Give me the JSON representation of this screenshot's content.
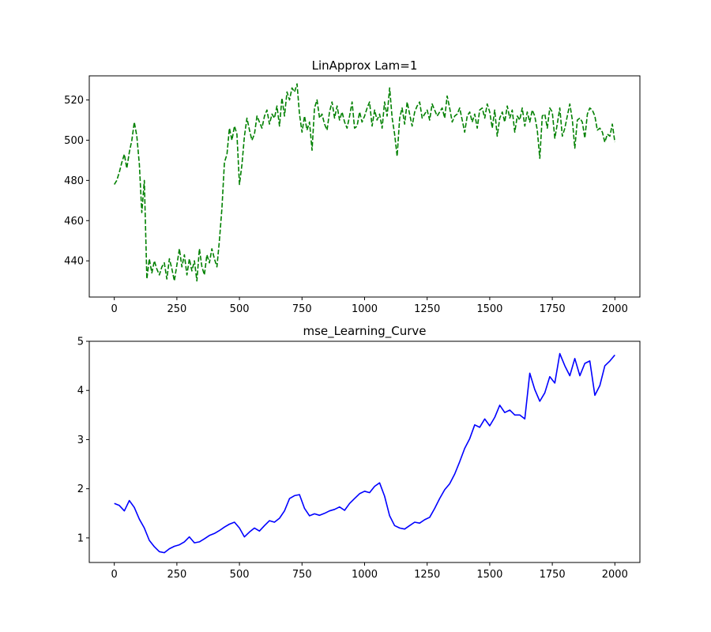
{
  "chart_data": [
    {
      "type": "line",
      "title": "LinApprox Lam=1",
      "xlabel": "",
      "ylabel": "",
      "xlim": [
        -100,
        2100
      ],
      "ylim": [
        422,
        532
      ],
      "xticks": [
        0,
        250,
        500,
        750,
        1000,
        1250,
        1500,
        1750,
        2000
      ],
      "yticks": [
        440,
        460,
        480,
        500,
        520
      ],
      "grid": false,
      "series": [
        {
          "color": "#008000",
          "style": "dashed",
          "x": [
            0,
            10,
            20,
            30,
            40,
            50,
            60,
            70,
            80,
            90,
            100,
            110,
            120,
            130,
            140,
            150,
            160,
            170,
            180,
            190,
            200,
            210,
            220,
            230,
            240,
            250,
            260,
            270,
            280,
            290,
            300,
            310,
            320,
            330,
            340,
            350,
            360,
            370,
            380,
            390,
            400,
            410,
            420,
            430,
            440,
            450,
            460,
            470,
            480,
            490,
            500,
            510,
            520,
            530,
            540,
            550,
            560,
            570,
            580,
            590,
            600,
            610,
            620,
            630,
            640,
            650,
            660,
            670,
            680,
            690,
            700,
            710,
            720,
            730,
            740,
            750,
            760,
            770,
            780,
            790,
            800,
            810,
            820,
            830,
            840,
            850,
            860,
            870,
            880,
            890,
            900,
            910,
            920,
            930,
            940,
            950,
            960,
            970,
            980,
            990,
            1000,
            1010,
            1020,
            1030,
            1040,
            1050,
            1060,
            1070,
            1080,
            1090,
            1100,
            1110,
            1120,
            1130,
            1140,
            1150,
            1160,
            1170,
            1180,
            1190,
            1200,
            1210,
            1220,
            1230,
            1240,
            1250,
            1260,
            1270,
            1280,
            1290,
            1300,
            1310,
            1320,
            1330,
            1340,
            1350,
            1360,
            1370,
            1380,
            1390,
            1400,
            1410,
            1420,
            1430,
            1440,
            1450,
            1460,
            1470,
            1480,
            1490,
            1500,
            1510,
            1520,
            1530,
            1540,
            1550,
            1560,
            1570,
            1580,
            1590,
            1600,
            1610,
            1620,
            1630,
            1640,
            1650,
            1660,
            1670,
            1680,
            1690,
            1700,
            1710,
            1720,
            1730,
            1740,
            1750,
            1760,
            1770,
            1780,
            1790,
            1800,
            1810,
            1820,
            1830,
            1840,
            1850,
            1860,
            1870,
            1880,
            1890,
            1900,
            1910,
            1920,
            1930,
            1940,
            1950,
            1960,
            1970,
            1980,
            1990,
            2000
          ],
          "y": [
            478,
            480,
            484,
            489,
            493,
            486,
            494,
            500,
            509,
            502,
            488,
            464,
            480,
            431,
            441,
            434,
            440,
            436,
            433,
            437,
            439,
            431,
            441,
            436,
            430,
            438,
            446,
            437,
            443,
            433,
            441,
            435,
            440,
            430,
            446,
            437,
            433,
            443,
            439,
            446,
            441,
            437,
            450,
            466,
            489,
            493,
            506,
            500,
            507,
            503,
            478,
            488,
            502,
            511,
            505,
            500,
            503,
            512,
            509,
            506,
            512,
            515,
            508,
            513,
            511,
            517,
            507,
            521,
            512,
            524,
            520,
            526,
            524,
            528,
            513,
            504,
            512,
            505,
            509,
            495,
            516,
            520,
            511,
            513,
            508,
            505,
            514,
            519,
            511,
            517,
            510,
            514,
            509,
            506,
            512,
            519,
            506,
            507,
            514,
            509,
            512,
            516,
            519,
            507,
            515,
            510,
            513,
            506,
            519,
            512,
            526,
            511,
            503,
            492,
            511,
            516,
            508,
            519,
            513,
            507,
            514,
            517,
            519,
            511,
            513,
            515,
            510,
            518,
            515,
            512,
            514,
            516,
            511,
            522,
            516,
            509,
            512,
            513,
            516,
            510,
            504,
            512,
            514,
            509,
            513,
            506,
            515,
            516,
            511,
            518,
            514,
            506,
            515,
            502,
            511,
            514,
            509,
            517,
            511,
            515,
            504,
            512,
            510,
            516,
            507,
            514,
            509,
            515,
            512,
            505,
            491,
            512,
            513,
            506,
            516,
            514,
            501,
            508,
            516,
            502,
            506,
            512,
            518,
            510,
            496,
            510,
            511,
            509,
            501,
            513,
            516,
            515,
            512,
            505,
            506,
            504,
            499,
            503,
            502,
            508,
            499
          ]
        }
      ]
    },
    {
      "type": "line",
      "title": "mse_Learning_Curve",
      "xlabel": "",
      "ylabel": "",
      "xlim": [
        -100,
        2100
      ],
      "ylim": [
        0.5,
        5
      ],
      "xticks": [
        0,
        250,
        500,
        750,
        1000,
        1250,
        1500,
        1750,
        2000
      ],
      "yticks": [
        1,
        2,
        3,
        4,
        5
      ],
      "grid": false,
      "series": [
        {
          "color": "#0000ff",
          "style": "solid",
          "x": [
            0,
            20,
            40,
            60,
            80,
            100,
            120,
            140,
            160,
            180,
            200,
            220,
            240,
            260,
            280,
            300,
            320,
            340,
            360,
            380,
            400,
            420,
            440,
            460,
            480,
            500,
            520,
            540,
            560,
            580,
            600,
            620,
            640,
            660,
            680,
            700,
            720,
            740,
            760,
            780,
            800,
            820,
            840,
            860,
            880,
            900,
            920,
            940,
            960,
            980,
            1000,
            1020,
            1040,
            1060,
            1080,
            1100,
            1120,
            1140,
            1160,
            1180,
            1200,
            1220,
            1240,
            1260,
            1280,
            1300,
            1320,
            1340,
            1360,
            1380,
            1400,
            1420,
            1440,
            1460,
            1480,
            1500,
            1520,
            1540,
            1560,
            1580,
            1600,
            1620,
            1640,
            1660,
            1680,
            1700,
            1720,
            1740,
            1760,
            1780,
            1800,
            1820,
            1840,
            1860,
            1880,
            1900,
            1920,
            1940,
            1960,
            1980,
            2000
          ],
          "y": [
            1.7,
            1.66,
            1.55,
            1.76,
            1.62,
            1.38,
            1.2,
            0.95,
            0.82,
            0.72,
            0.7,
            0.78,
            0.83,
            0.86,
            0.92,
            1.02,
            0.9,
            0.92,
            0.98,
            1.05,
            1.09,
            1.15,
            1.22,
            1.28,
            1.32,
            1.2,
            1.02,
            1.12,
            1.2,
            1.14,
            1.25,
            1.35,
            1.32,
            1.4,
            1.55,
            1.8,
            1.86,
            1.88,
            1.6,
            1.45,
            1.49,
            1.46,
            1.5,
            1.55,
            1.58,
            1.63,
            1.56,
            1.7,
            1.8,
            1.9,
            1.95,
            1.92,
            2.05,
            2.12,
            1.85,
            1.45,
            1.25,
            1.2,
            1.18,
            1.25,
            1.32,
            1.3,
            1.37,
            1.42,
            1.6,
            1.8,
            1.98,
            2.1,
            2.3,
            2.55,
            2.82,
            3.02,
            3.3,
            3.25,
            3.42,
            3.28,
            3.45,
            3.7,
            3.55,
            3.6,
            3.5,
            3.5,
            3.42,
            4.35,
            4.02,
            3.78,
            3.95,
            4.28,
            4.15,
            4.75,
            4.5,
            4.3,
            4.65,
            4.3,
            4.55,
            4.6,
            3.9,
            4.1,
            4.5,
            4.6,
            4.72
          ]
        }
      ]
    }
  ]
}
